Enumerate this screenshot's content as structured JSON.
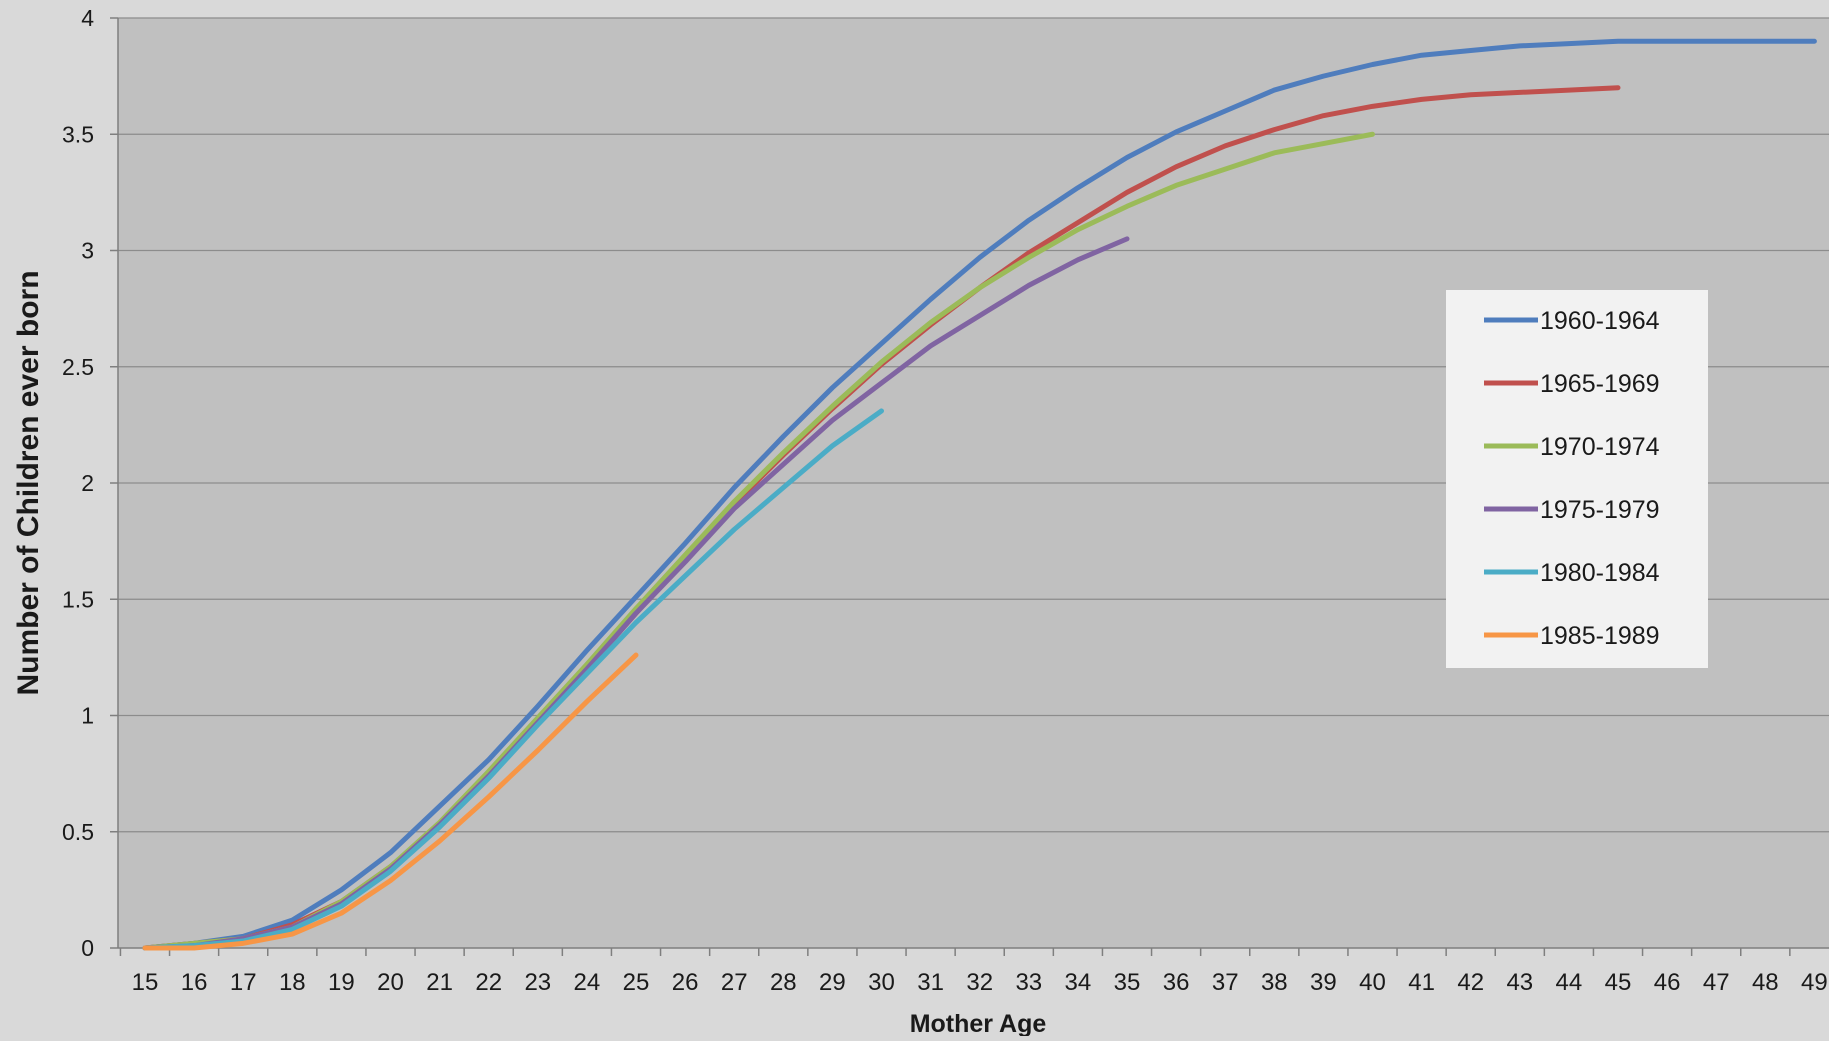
{
  "chart_data": {
    "type": "line",
    "xlabel": "Mother Age",
    "ylabel": "Number of Children ever born",
    "xlim": [
      15,
      49
    ],
    "ylim": [
      0,
      4
    ],
    "x_ticks": [
      15,
      16,
      17,
      18,
      19,
      20,
      21,
      22,
      23,
      24,
      25,
      26,
      27,
      28,
      29,
      30,
      31,
      32,
      33,
      34,
      35,
      36,
      37,
      38,
      39,
      40,
      41,
      42,
      43,
      44,
      45,
      46,
      47,
      48,
      49
    ],
    "y_ticks": [
      0,
      0.5,
      1,
      1.5,
      2,
      2.5,
      3,
      3.5,
      4
    ],
    "grid": {
      "horizontal": true,
      "vertical": false
    },
    "legend_position": "right",
    "colors": {
      "plot_background": "#c0c0c0",
      "page_background": "#d9d9d9",
      "gridline": "#8c8c8c",
      "legend_background": "#f2f2f2"
    },
    "series": [
      {
        "name": "1960-1964",
        "color": "#4f7dbd",
        "x": [
          15,
          16,
          17,
          18,
          19,
          20,
          21,
          22,
          23,
          24,
          25,
          26,
          27,
          28,
          29,
          30,
          31,
          32,
          33,
          34,
          35,
          36,
          37,
          38,
          39,
          40,
          41,
          42,
          43,
          44,
          45,
          46,
          47,
          48,
          49
        ],
        "values": [
          0.0,
          0.02,
          0.05,
          0.12,
          0.25,
          0.41,
          0.61,
          0.81,
          1.04,
          1.28,
          1.51,
          1.74,
          1.98,
          2.2,
          2.41,
          2.6,
          2.79,
          2.97,
          3.13,
          3.27,
          3.4,
          3.51,
          3.6,
          3.69,
          3.75,
          3.8,
          3.84,
          3.86,
          3.88,
          3.89,
          3.9,
          3.9,
          3.9,
          3.9,
          3.9
        ]
      },
      {
        "name": "1965-1969",
        "color": "#c0504d",
        "x": [
          15,
          16,
          17,
          18,
          19,
          20,
          21,
          22,
          23,
          24,
          25,
          26,
          27,
          28,
          29,
          30,
          31,
          32,
          33,
          34,
          35,
          36,
          37,
          38,
          39,
          40,
          41,
          42,
          43,
          44,
          45
        ],
        "values": [
          0.0,
          0.02,
          0.04,
          0.1,
          0.2,
          0.35,
          0.53,
          0.74,
          0.97,
          1.2,
          1.44,
          1.67,
          1.91,
          2.12,
          2.32,
          2.51,
          2.68,
          2.84,
          2.99,
          3.12,
          3.25,
          3.36,
          3.45,
          3.52,
          3.58,
          3.62,
          3.65,
          3.67,
          3.68,
          3.69,
          3.7
        ]
      },
      {
        "name": "1970-1974",
        "color": "#9bbb59",
        "x": [
          15,
          16,
          17,
          18,
          19,
          20,
          21,
          22,
          23,
          24,
          25,
          26,
          27,
          28,
          29,
          30,
          31,
          32,
          33,
          34,
          35,
          36,
          37,
          38,
          39,
          40
        ],
        "values": [
          0.0,
          0.02,
          0.04,
          0.09,
          0.2,
          0.35,
          0.54,
          0.76,
          0.99,
          1.22,
          1.46,
          1.69,
          1.92,
          2.13,
          2.33,
          2.52,
          2.69,
          2.84,
          2.97,
          3.09,
          3.19,
          3.28,
          3.35,
          3.42,
          3.46,
          3.5
        ]
      },
      {
        "name": "1975-1979",
        "color": "#8064a2",
        "x": [
          15,
          16,
          17,
          18,
          19,
          20,
          21,
          22,
          23,
          24,
          25,
          26,
          27,
          28,
          29,
          30,
          31,
          32,
          33,
          34,
          35
        ],
        "values": [
          0.0,
          0.01,
          0.04,
          0.09,
          0.19,
          0.34,
          0.53,
          0.74,
          0.97,
          1.2,
          1.44,
          1.66,
          1.89,
          2.08,
          2.27,
          2.43,
          2.59,
          2.72,
          2.85,
          2.96,
          3.05
        ]
      },
      {
        "name": "1980-1984",
        "color": "#4bacc6",
        "x": [
          15,
          16,
          17,
          18,
          19,
          20,
          21,
          22,
          23,
          24,
          25,
          26,
          27,
          28,
          29,
          30
        ],
        "values": [
          0.0,
          0.01,
          0.03,
          0.08,
          0.18,
          0.33,
          0.52,
          0.73,
          0.96,
          1.18,
          1.4,
          1.6,
          1.8,
          1.98,
          2.16,
          2.31
        ]
      },
      {
        "name": "1985-1989",
        "color": "#f79646",
        "x": [
          15,
          16,
          17,
          18,
          19,
          20,
          21,
          22,
          23,
          24,
          25
        ],
        "values": [
          0.0,
          0.0,
          0.02,
          0.06,
          0.15,
          0.29,
          0.46,
          0.65,
          0.85,
          1.06,
          1.26
        ]
      }
    ]
  }
}
